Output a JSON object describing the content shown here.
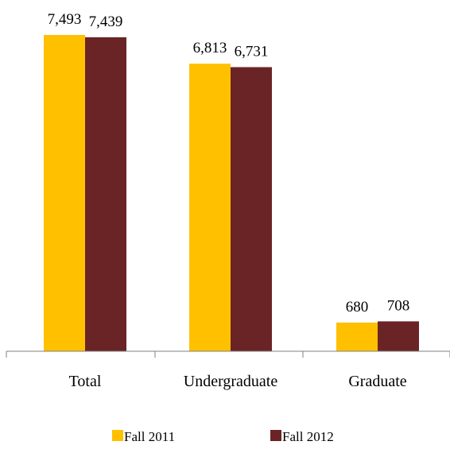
{
  "chart_data": {
    "type": "bar",
    "categories": [
      "Total",
      "Undergraduate",
      "Graduate"
    ],
    "series": [
      {
        "name": "Fall 2011",
        "values": [
          7493,
          6813,
          680
        ],
        "labels": [
          "7,493",
          "6,813",
          "680"
        ],
        "color": "#FFC000"
      },
      {
        "name": "Fall 2012",
        "values": [
          7439,
          6731,
          708
        ],
        "labels": [
          "7,439",
          "6,731",
          "708"
        ],
        "color": "#6B2426"
      }
    ],
    "ylim": [
      0,
      7493
    ],
    "grid": false,
    "legend": "bottom"
  }
}
